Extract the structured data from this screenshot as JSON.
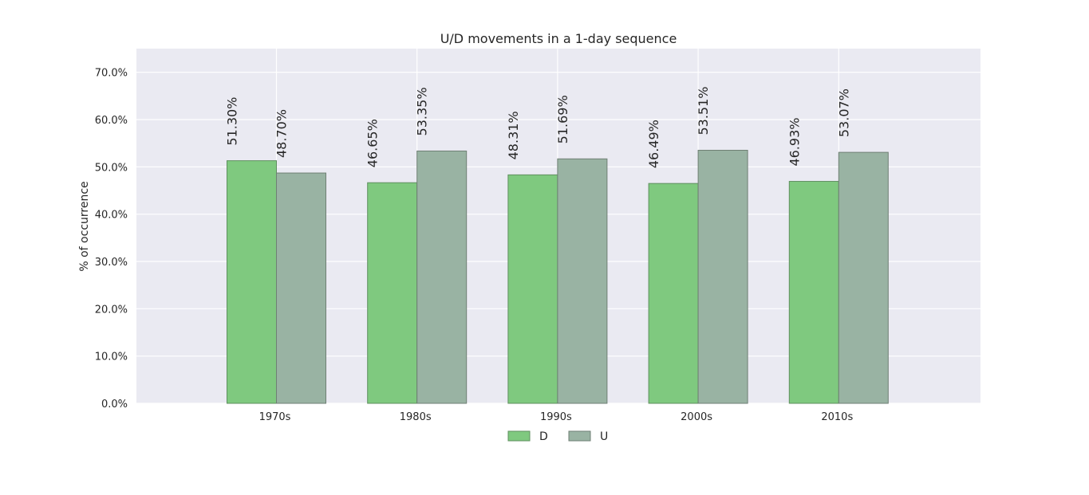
{
  "chart_data": {
    "type": "bar",
    "title": "U/D movements in a 1-day sequence",
    "xlabel": "",
    "ylabel": "% of occurrence",
    "categories": [
      "1970s",
      "1980s",
      "1990s",
      "2000s",
      "2010s"
    ],
    "ylim": [
      0,
      75
    ],
    "yticks": [
      0,
      10,
      20,
      30,
      40,
      50,
      60,
      70
    ],
    "ytick_labels": [
      "0.0%",
      "10.0%",
      "20.0%",
      "30.0%",
      "40.0%",
      "50.0%",
      "60.0%",
      "70.0%"
    ],
    "grid": true,
    "legend_position": "bottom-center",
    "series": [
      {
        "name": "D",
        "color": "#7fc97f",
        "values": [
          51.3,
          46.65,
          48.31,
          46.49,
          46.93
        ],
        "labels": [
          "51.30%",
          "46.65%",
          "48.31%",
          "46.49%",
          "46.93%"
        ]
      },
      {
        "name": "U",
        "color": "#99b3a3",
        "values": [
          48.7,
          53.35,
          51.69,
          53.51,
          53.07
        ],
        "labels": [
          "48.70%",
          "53.35%",
          "51.69%",
          "53.51%",
          "53.07%"
        ]
      }
    ]
  }
}
